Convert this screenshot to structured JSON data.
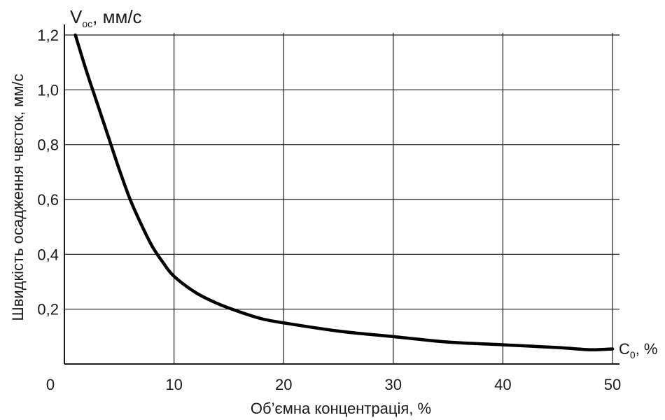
{
  "chart_data": {
    "type": "line",
    "xlabel": "Об’ємна концентрація, %",
    "ylabel": "Швидкість осадження чвсток, мм/с",
    "y_axis_unit": {
      "symbol": "V",
      "subscript": "ос",
      "suffix": ", мм/с"
    },
    "x_axis_unit": {
      "symbol": "C",
      "subscript": "0",
      "suffix": ", %"
    },
    "xlim": [
      0,
      50
    ],
    "ylim": [
      0,
      1.2
    ],
    "x_ticks": [
      10,
      20,
      30,
      40,
      50
    ],
    "x_tick_labels": [
      "10",
      "20",
      "30",
      "40",
      "50"
    ],
    "y_ticks": [
      0.2,
      0.4,
      0.6,
      0.8,
      1.0,
      1.2
    ],
    "y_tick_labels": [
      "0,2",
      "0,4",
      "0,6",
      "0,8",
      "1,0",
      "1,2"
    ],
    "origin_label": "0",
    "grid": true,
    "line_color": "#000000",
    "grid_color": "#1a1a1a",
    "series": [
      {
        "x": [
          1,
          2,
          3,
          4,
          5,
          6,
          7,
          8,
          9,
          10,
          12,
          14,
          16,
          18,
          20,
          25,
          30,
          35,
          40,
          45,
          48,
          50
        ],
        "y": [
          1.2,
          1.07,
          0.95,
          0.83,
          0.71,
          0.6,
          0.51,
          0.43,
          0.37,
          0.32,
          0.26,
          0.22,
          0.19,
          0.165,
          0.15,
          0.12,
          0.1,
          0.08,
          0.07,
          0.06,
          0.052,
          0.055
        ]
      }
    ]
  }
}
